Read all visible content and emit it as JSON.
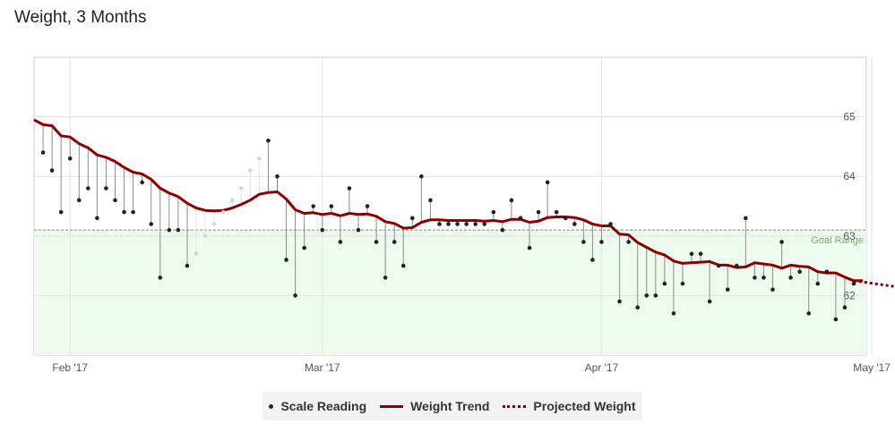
{
  "title": "Weight, 3 Months",
  "chart_data": {
    "type": "line",
    "x_axis": {
      "labels": [
        "Feb '17",
        "Mar '17",
        "Apr '17",
        "May '17"
      ],
      "label_dates": [
        "2017-02-01",
        "2017-03-01",
        "2017-04-01",
        "2017-05-01"
      ],
      "range": [
        "2017-01-29",
        "2017-05-04"
      ]
    },
    "y_axis": {
      "ticks": [
        62,
        63,
        64,
        65
      ],
      "range": [
        61,
        66
      ],
      "side": "right"
    },
    "goal": {
      "label": "Goal Range",
      "value": 63.1
    },
    "series": [
      {
        "name": "Scale Reading",
        "style": "points",
        "color": "#222222",
        "points": [
          [
            "2017-01-29",
            64.4
          ],
          [
            "2017-01-30",
            64.1
          ],
          [
            "2017-01-31",
            63.4
          ],
          [
            "2017-02-01",
            64.3
          ],
          [
            "2017-02-02",
            63.6
          ],
          [
            "2017-02-03",
            63.8
          ],
          [
            "2017-02-04",
            63.3
          ],
          [
            "2017-02-05",
            63.8
          ],
          [
            "2017-02-06",
            63.6
          ],
          [
            "2017-02-07",
            63.4
          ],
          [
            "2017-02-08",
            63.4
          ],
          [
            "2017-02-09",
            63.9
          ],
          [
            "2017-02-10",
            63.2
          ],
          [
            "2017-02-11",
            62.3
          ],
          [
            "2017-02-12",
            63.1
          ],
          [
            "2017-02-13",
            63.1
          ],
          [
            "2017-02-14",
            62.5
          ],
          [
            "2017-02-15",
            62.7
          ],
          [
            "2017-02-16",
            63.0
          ],
          [
            "2017-02-17",
            63.2
          ],
          [
            "2017-02-18",
            63.4
          ],
          [
            "2017-02-19",
            63.6
          ],
          [
            "2017-02-20",
            63.8
          ],
          [
            "2017-02-21",
            64.1
          ],
          [
            "2017-02-22",
            64.3
          ],
          [
            "2017-02-23",
            64.6
          ],
          [
            "2017-02-24",
            64.0
          ],
          [
            "2017-02-25",
            62.6
          ],
          [
            "2017-02-26",
            62.0
          ],
          [
            "2017-02-27",
            62.8
          ],
          [
            "2017-02-28",
            63.5
          ],
          [
            "2017-03-01",
            63.1
          ],
          [
            "2017-03-02",
            63.5
          ],
          [
            "2017-03-03",
            62.9
          ],
          [
            "2017-03-04",
            63.8
          ],
          [
            "2017-03-05",
            63.1
          ],
          [
            "2017-03-06",
            63.5
          ],
          [
            "2017-03-07",
            62.9
          ],
          [
            "2017-03-08",
            62.3
          ],
          [
            "2017-03-09",
            62.9
          ],
          [
            "2017-03-10",
            62.5
          ],
          [
            "2017-03-11",
            63.3
          ],
          [
            "2017-03-12",
            64.0
          ],
          [
            "2017-03-13",
            63.6
          ],
          [
            "2017-03-14",
            63.2
          ],
          [
            "2017-03-15",
            63.2
          ],
          [
            "2017-03-16",
            63.2
          ],
          [
            "2017-03-17",
            63.2
          ],
          [
            "2017-03-18",
            63.2
          ],
          [
            "2017-03-19",
            63.2
          ],
          [
            "2017-03-20",
            63.4
          ],
          [
            "2017-03-21",
            63.1
          ],
          [
            "2017-03-22",
            63.6
          ],
          [
            "2017-03-23",
            63.3
          ],
          [
            "2017-03-24",
            62.8
          ],
          [
            "2017-03-25",
            63.4
          ],
          [
            "2017-03-26",
            63.9
          ],
          [
            "2017-03-27",
            63.4
          ],
          [
            "2017-03-28",
            63.3
          ],
          [
            "2017-03-29",
            63.2
          ],
          [
            "2017-03-30",
            62.9
          ],
          [
            "2017-03-31",
            62.6
          ],
          [
            "2017-04-01",
            62.9
          ],
          [
            "2017-04-02",
            63.2
          ],
          [
            "2017-04-03",
            61.9
          ],
          [
            "2017-04-04",
            62.9
          ],
          [
            "2017-04-05",
            61.8
          ],
          [
            "2017-04-06",
            62.0
          ],
          [
            "2017-04-07",
            62.0
          ],
          [
            "2017-04-08",
            62.2
          ],
          [
            "2017-04-09",
            61.7
          ],
          [
            "2017-04-10",
            62.2
          ],
          [
            "2017-04-11",
            62.7
          ],
          [
            "2017-04-12",
            62.7
          ],
          [
            "2017-04-13",
            61.9
          ],
          [
            "2017-04-14",
            62.5
          ],
          [
            "2017-04-15",
            62.1
          ],
          [
            "2017-04-16",
            62.5
          ],
          [
            "2017-04-17",
            63.3
          ],
          [
            "2017-04-18",
            62.3
          ],
          [
            "2017-04-19",
            62.3
          ],
          [
            "2017-04-20",
            62.1
          ],
          [
            "2017-04-21",
            62.9
          ],
          [
            "2017-04-22",
            62.3
          ],
          [
            "2017-04-23",
            62.4
          ],
          [
            "2017-04-24",
            61.7
          ],
          [
            "2017-04-25",
            62.2
          ],
          [
            "2017-04-26",
            62.4
          ],
          [
            "2017-04-27",
            61.6
          ],
          [
            "2017-04-28",
            61.8
          ],
          [
            "2017-04-29",
            62.2
          ]
        ]
      },
      {
        "name": "Weight Trend",
        "style": "line",
        "color": "#8b0000",
        "points": [
          [
            "2017-01-28",
            64.95
          ],
          [
            "2017-01-29",
            64.87
          ],
          [
            "2017-01-30",
            64.85
          ],
          [
            "2017-01-31",
            64.68
          ],
          [
            "2017-02-01",
            64.66
          ],
          [
            "2017-02-02",
            64.55
          ],
          [
            "2017-02-03",
            64.48
          ],
          [
            "2017-02-04",
            64.36
          ],
          [
            "2017-02-05",
            64.32
          ],
          [
            "2017-02-06",
            64.25
          ],
          [
            "2017-02-07",
            64.15
          ],
          [
            "2017-02-08",
            64.07
          ],
          [
            "2017-02-09",
            64.04
          ],
          [
            "2017-02-10",
            63.95
          ],
          [
            "2017-02-11",
            63.8
          ],
          [
            "2017-02-12",
            63.72
          ],
          [
            "2017-02-13",
            63.66
          ],
          [
            "2017-02-14",
            63.55
          ],
          [
            "2017-02-15",
            63.47
          ],
          [
            "2017-02-16",
            63.43
          ],
          [
            "2017-02-17",
            63.42
          ],
          [
            "2017-02-18",
            63.43
          ],
          [
            "2017-02-19",
            63.47
          ],
          [
            "2017-02-20",
            63.53
          ],
          [
            "2017-02-21",
            63.6
          ],
          [
            "2017-02-22",
            63.7
          ],
          [
            "2017-02-23",
            63.73
          ],
          [
            "2017-02-24",
            63.74
          ],
          [
            "2017-02-25",
            63.62
          ],
          [
            "2017-02-26",
            63.44
          ],
          [
            "2017-02-27",
            63.38
          ],
          [
            "2017-02-28",
            63.39
          ],
          [
            "2017-03-01",
            63.36
          ],
          [
            "2017-03-02",
            63.38
          ],
          [
            "2017-03-03",
            63.34
          ],
          [
            "2017-03-04",
            63.38
          ],
          [
            "2017-03-05",
            63.36
          ],
          [
            "2017-03-06",
            63.37
          ],
          [
            "2017-03-07",
            63.33
          ],
          [
            "2017-03-08",
            63.24
          ],
          [
            "2017-03-09",
            63.21
          ],
          [
            "2017-03-10",
            63.13
          ],
          [
            "2017-03-11",
            63.14
          ],
          [
            "2017-03-12",
            63.23
          ],
          [
            "2017-03-13",
            63.27
          ],
          [
            "2017-03-14",
            63.27
          ],
          [
            "2017-03-15",
            63.26
          ],
          [
            "2017-03-16",
            63.26
          ],
          [
            "2017-03-17",
            63.26
          ],
          [
            "2017-03-18",
            63.26
          ],
          [
            "2017-03-19",
            63.25
          ],
          [
            "2017-03-20",
            63.26
          ],
          [
            "2017-03-21",
            63.24
          ],
          [
            "2017-03-22",
            63.28
          ],
          [
            "2017-03-23",
            63.28
          ],
          [
            "2017-03-24",
            63.23
          ],
          [
            "2017-03-25",
            63.25
          ],
          [
            "2017-03-26",
            63.31
          ],
          [
            "2017-03-27",
            63.32
          ],
          [
            "2017-03-28",
            63.32
          ],
          [
            "2017-03-29",
            63.31
          ],
          [
            "2017-03-30",
            63.27
          ],
          [
            "2017-03-31",
            63.2
          ],
          [
            "2017-04-01",
            63.17
          ],
          [
            "2017-04-02",
            63.17
          ],
          [
            "2017-04-03",
            63.03
          ],
          [
            "2017-04-04",
            63.02
          ],
          [
            "2017-04-05",
            62.89
          ],
          [
            "2017-04-06",
            62.81
          ],
          [
            "2017-04-07",
            62.73
          ],
          [
            "2017-04-08",
            62.68
          ],
          [
            "2017-04-09",
            62.58
          ],
          [
            "2017-04-10",
            62.54
          ],
          [
            "2017-04-11",
            62.55
          ],
          [
            "2017-04-12",
            62.56
          ],
          [
            "2017-04-13",
            62.57
          ],
          [
            "2017-04-14",
            62.51
          ],
          [
            "2017-04-15",
            62.51
          ],
          [
            "2017-04-16",
            62.47
          ],
          [
            "2017-04-17",
            62.48
          ],
          [
            "2017-04-18",
            62.55
          ],
          [
            "2017-04-19",
            62.53
          ],
          [
            "2017-04-20",
            62.51
          ],
          [
            "2017-04-21",
            62.46
          ],
          [
            "2017-04-22",
            62.51
          ],
          [
            "2017-04-23",
            62.49
          ],
          [
            "2017-04-24",
            62.48
          ],
          [
            "2017-04-25",
            62.4
          ],
          [
            "2017-04-26",
            62.38
          ],
          [
            "2017-04-27",
            62.38
          ],
          [
            "2017-04-28",
            62.31
          ],
          [
            "2017-04-29",
            62.25
          ],
          [
            "2017-04-30",
            62.25
          ]
        ]
      },
      {
        "name": "Projected Weight",
        "style": "dotted",
        "color": "#8b0000",
        "points": [
          [
            "2017-04-29",
            62.25
          ],
          [
            "2017-05-05",
            62.12
          ]
        ]
      }
    ],
    "faded_point_dates": [
      "2017-02-15",
      "2017-02-16",
      "2017-02-17",
      "2017-02-18",
      "2017-02-19",
      "2017-02-20",
      "2017-02-21",
      "2017-02-22"
    ],
    "grid": true,
    "legend_position": "bottom-center"
  },
  "legend": {
    "scale_reading": "Scale Reading",
    "weight_trend": "Weight Trend",
    "projected_weight": "Projected Weight"
  }
}
